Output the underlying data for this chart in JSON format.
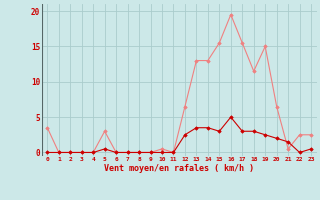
{
  "x": [
    0,
    1,
    2,
    3,
    4,
    5,
    6,
    7,
    8,
    9,
    10,
    11,
    12,
    13,
    14,
    15,
    16,
    17,
    18,
    19,
    20,
    21,
    22,
    23
  ],
  "y_rafales": [
    3.5,
    0,
    0,
    0,
    0,
    3.0,
    0,
    0,
    0,
    0,
    0.5,
    0,
    6.5,
    13,
    13,
    15.5,
    19.5,
    15.5,
    11.5,
    15,
    6.5,
    0.5,
    2.5,
    2.5
  ],
  "y_moyen": [
    0,
    0,
    0,
    0,
    0,
    0.5,
    0,
    0,
    0,
    0,
    0,
    0,
    2.5,
    3.5,
    3.5,
    3.0,
    5.0,
    3.0,
    3.0,
    2.5,
    2.0,
    1.5,
    0,
    0.5
  ],
  "line_color_rafales": "#f08080",
  "line_color_moyen": "#cc0000",
  "marker_color_rafales": "#f08080",
  "marker_color_moyen": "#cc0000",
  "bg_color": "#cce8e8",
  "grid_color": "#aacccc",
  "xlabel": "Vent moyen/en rafales ( km/h )",
  "xlabel_color": "#cc0000",
  "ylabel_vals": [
    0,
    5,
    10,
    15,
    20
  ],
  "ytick_color": "#cc0000",
  "xtick_color": "#cc0000",
  "xlim": [
    -0.5,
    23.5
  ],
  "ylim": [
    -0.5,
    21
  ]
}
